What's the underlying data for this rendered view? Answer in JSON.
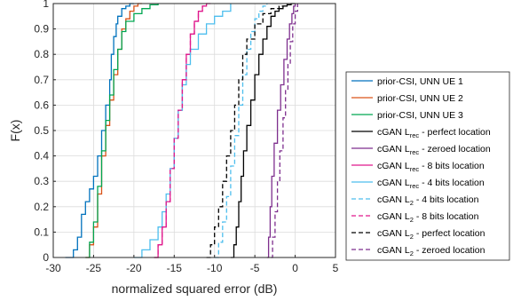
{
  "chart_data": {
    "type": "line",
    "title": "",
    "xlabel": "normalized squared error (dB)",
    "ylabel": "F(x)",
    "xlim": [
      -30,
      5
    ],
    "ylim": [
      0,
      1
    ],
    "xticks": [
      -30,
      -25,
      -20,
      -15,
      -10,
      -5,
      0,
      5
    ],
    "yticks": [
      0,
      0.1,
      0.2,
      0.3,
      0.4,
      0.5,
      0.6,
      0.7,
      0.8,
      0.9,
      1
    ],
    "xtick_labels": [
      "-30",
      "-25",
      "-20",
      "-15",
      "-10",
      "-5",
      "0",
      "5"
    ],
    "ytick_labels": [
      "0",
      "0.1",
      "0.2",
      "0.3",
      "0.4",
      "0.5",
      "0.6",
      "0.7",
      "0.8",
      "0.9",
      "1"
    ],
    "grid": true,
    "legend_position": "outside-right",
    "series": [
      {
        "name": "prior-CSI, UNN UE 1",
        "color": "#0072BD",
        "dash": "solid",
        "x": [
          -28.5,
          -27.5,
          -27.0,
          -26.5,
          -26.0,
          -25.5,
          -25.0,
          -24.5,
          -24.0,
          -23.5,
          -23.0,
          -22.8,
          -22.5,
          -22.2,
          -22.0,
          -21.5,
          -21.0,
          -20.5,
          -20.0
        ],
        "y": [
          0,
          0.03,
          0.08,
          0.17,
          0.22,
          0.27,
          0.32,
          0.4,
          0.5,
          0.6,
          0.7,
          0.8,
          0.87,
          0.92,
          0.95,
          0.98,
          0.99,
          1.0,
          1.0
        ]
      },
      {
        "name": "prior-CSI, UNN UE 2",
        "color": "#D95319",
        "dash": "solid",
        "x": [
          -26.0,
          -25.5,
          -25.0,
          -24.5,
          -24.0,
          -23.5,
          -23.0,
          -22.5,
          -22.0,
          -21.5,
          -21.0,
          -20.5,
          -20.0,
          -19.5,
          -19.0
        ],
        "y": [
          0,
          0.05,
          0.12,
          0.25,
          0.4,
          0.52,
          0.62,
          0.72,
          0.82,
          0.9,
          0.94,
          0.97,
          0.99,
          1.0,
          1.0
        ]
      },
      {
        "name": "prior-CSI, UNN UE 3",
        "color": "#00A651",
        "dash": "solid",
        "x": [
          -26.0,
          -25.5,
          -25.0,
          -24.5,
          -24.0,
          -23.5,
          -23.0,
          -22.5,
          -22.0,
          -21.5,
          -21.0,
          -20.0,
          -19.0,
          -18.0,
          -17.0
        ],
        "y": [
          0,
          0.06,
          0.14,
          0.28,
          0.42,
          0.54,
          0.64,
          0.74,
          0.82,
          0.89,
          0.93,
          0.96,
          0.98,
          0.995,
          1.0
        ]
      },
      {
        "name": "cGAN L_rec - perfect location",
        "color": "#000000",
        "dash": "solid",
        "x": [
          -8.0,
          -7.6,
          -7.3,
          -7.0,
          -6.7,
          -6.4,
          -6.0,
          -5.5,
          -5.0,
          -4.5,
          -4.0,
          -3.5,
          -3.0,
          -2.5,
          -2.0,
          -1.5,
          -1.0,
          -0.5,
          0
        ],
        "y": [
          0,
          0.05,
          0.12,
          0.22,
          0.32,
          0.42,
          0.52,
          0.62,
          0.72,
          0.8,
          0.86,
          0.91,
          0.95,
          0.97,
          0.98,
          0.99,
          0.995,
          1.0,
          1.0
        ]
      },
      {
        "name": "cGAN L_rec - zeroed location",
        "color": "#7E2F8E",
        "dash": "solid",
        "x": [
          -3.5,
          -3.3,
          -3.1,
          -2.9,
          -2.6,
          -2.2,
          -1.8,
          -1.4,
          -1.0,
          -0.7,
          -0.4,
          -0.2,
          0.0
        ],
        "y": [
          0,
          0.08,
          0.2,
          0.32,
          0.45,
          0.58,
          0.68,
          0.78,
          0.86,
          0.92,
          0.96,
          0.99,
          1.0
        ]
      },
      {
        "name": "cGAN L_rec - 8 bits location",
        "color": "#E0188C",
        "dash": "solid",
        "x": [
          -17.5,
          -17.0,
          -16.5,
          -16.0,
          -15.5,
          -15.0,
          -14.5,
          -14.0,
          -13.5,
          -13.0,
          -12.5,
          -12.0,
          -11.5,
          -11.0,
          -10.5
        ],
        "y": [
          0,
          0.05,
          0.12,
          0.22,
          0.35,
          0.47,
          0.58,
          0.7,
          0.8,
          0.88,
          0.93,
          0.97,
          0.99,
          1.0,
          1.0
        ]
      },
      {
        "name": "cGAN L_rec - 4 bits location",
        "color": "#4DBEEE",
        "dash": "solid",
        "x": [
          -20.0,
          -19.0,
          -18.0,
          -17.0,
          -16.5,
          -16.0,
          -15.5,
          -15.0,
          -14.5,
          -14.0,
          -13.5,
          -13.0,
          -12.0,
          -11.0,
          -10.0,
          -9.0,
          -8.0
        ],
        "y": [
          0,
          0.03,
          0.07,
          0.12,
          0.18,
          0.25,
          0.35,
          0.47,
          0.58,
          0.68,
          0.76,
          0.82,
          0.88,
          0.92,
          0.95,
          0.97,
          1.0
        ]
      },
      {
        "name": "cGAN L_2 - 4 bits location",
        "color": "#4DBEEE",
        "dash": "dashed",
        "x": [
          -10.0,
          -9.5,
          -9.0,
          -8.5,
          -8.0,
          -7.5,
          -7.0,
          -6.5,
          -6.0,
          -5.5,
          -5.0,
          -4.5,
          -4.0,
          -3.5
        ],
        "y": [
          0,
          0.06,
          0.14,
          0.24,
          0.36,
          0.48,
          0.6,
          0.72,
          0.82,
          0.89,
          0.94,
          0.97,
          0.99,
          1.0
        ]
      },
      {
        "name": "cGAN L_2 - 8 bits location",
        "color": "#E0188C",
        "dash": "dashed",
        "x": [
          -17.5,
          -17.0,
          -16.5,
          -16.0,
          -15.5,
          -15.0,
          -14.5,
          -14.0,
          -13.5,
          -13.0,
          -12.5,
          -12.0,
          -11.5,
          -11.0
        ],
        "y": [
          0,
          0.05,
          0.12,
          0.22,
          0.35,
          0.47,
          0.58,
          0.7,
          0.8,
          0.88,
          0.93,
          0.97,
          0.99,
          1.0
        ]
      },
      {
        "name": "cGAN L_2 - perfect location",
        "color": "#000000",
        "dash": "dashed",
        "x": [
          -11.0,
          -10.5,
          -10.0,
          -9.5,
          -9.0,
          -8.5,
          -8.0,
          -7.5,
          -7.0,
          -6.5,
          -6.0,
          -5.0,
          -4.0,
          -3.0,
          -2.0,
          -1.0
        ],
        "y": [
          0,
          0.05,
          0.12,
          0.2,
          0.3,
          0.4,
          0.5,
          0.6,
          0.7,
          0.8,
          0.86,
          0.92,
          0.96,
          0.98,
          0.99,
          1.0
        ]
      },
      {
        "name": "cGAN L_2 - zeroed location",
        "color": "#7E2F8E",
        "dash": "dashed",
        "x": [
          -3.0,
          -2.8,
          -2.5,
          -2.2,
          -1.9,
          -1.5,
          -1.2,
          -0.9,
          -0.6,
          -0.3,
          0.0,
          0.3
        ],
        "y": [
          0,
          0.08,
          0.18,
          0.3,
          0.42,
          0.55,
          0.66,
          0.76,
          0.85,
          0.92,
          0.97,
          1.0
        ]
      }
    ]
  },
  "legend": [
    {
      "main": "prior-CSI, UNN UE 1",
      "sub": "",
      "tail": ""
    },
    {
      "main": "prior-CSI, UNN UE 2",
      "sub": "",
      "tail": ""
    },
    {
      "main": "prior-CSI, UNN UE 3",
      "sub": "",
      "tail": ""
    },
    {
      "main": "cGAN L",
      "sub": "rec",
      "tail": " - perfect location"
    },
    {
      "main": "cGAN L",
      "sub": "rec",
      "tail": " - zeroed location"
    },
    {
      "main": "cGAN L",
      "sub": "rec",
      "tail": " - 8 bits location"
    },
    {
      "main": "cGAN L",
      "sub": "rec",
      "tail": " - 4 bits location"
    },
    {
      "main": "cGAN L",
      "sub": "2",
      "tail": " - 4 bits location"
    },
    {
      "main": "cGAN L",
      "sub": "2",
      "tail": " - 8 bits location"
    },
    {
      "main": "cGAN L",
      "sub": "2",
      "tail": " - perfect location"
    },
    {
      "main": "cGAN L",
      "sub": "2",
      "tail": " - zeroed location"
    }
  ]
}
